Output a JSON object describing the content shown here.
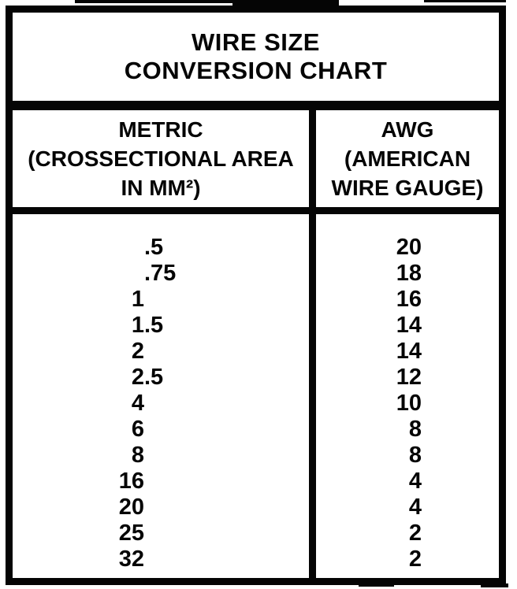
{
  "page": {
    "ink_color": "#050505",
    "paper_color": "#ffffff"
  },
  "title": "WIRE SIZE\nCONVERSION CHART",
  "table": {
    "columns": [
      {
        "id": "metric",
        "header": "METRIC\n(CROSSECTIONAL AREA\nIN MM²)"
      },
      {
        "id": "awg",
        "header": "AWG\n(AMERICAN\nWIRE GAUGE)"
      }
    ],
    "rows": [
      {
        "metric": ".5",
        "awg": "20"
      },
      {
        "metric": ".75",
        "awg": "18"
      },
      {
        "metric": "1",
        "awg": "16"
      },
      {
        "metric": "1.5",
        "awg": "14"
      },
      {
        "metric": "2",
        "awg": "14"
      },
      {
        "metric": "2.5",
        "awg": "12"
      },
      {
        "metric": "4",
        "awg": "10"
      },
      {
        "metric": "6",
        "awg": "8"
      },
      {
        "metric": "8",
        "awg": "8"
      },
      {
        "metric": "16",
        "awg": "4"
      },
      {
        "metric": "20",
        "awg": "4"
      },
      {
        "metric": "25",
        "awg": "2"
      },
      {
        "metric": "32",
        "awg": "2"
      }
    ]
  }
}
